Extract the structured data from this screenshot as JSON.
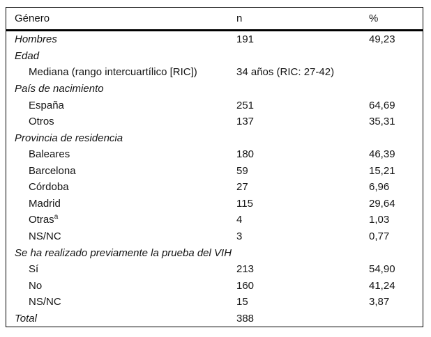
{
  "table": {
    "columns": [
      "Género",
      "n",
      "%"
    ],
    "rows": [
      {
        "label": "Hombres",
        "style": "category",
        "n": "191",
        "pct": "49,23"
      },
      {
        "label": "Edad",
        "style": "category",
        "n": "",
        "pct": ""
      },
      {
        "label": "Mediana (rango intercuartílico [RIC])",
        "style": "sub",
        "n": "34 años (RIC: 27-42)",
        "pct": ""
      },
      {
        "label": "País de nacimiento",
        "style": "category",
        "n": "",
        "pct": ""
      },
      {
        "label": "España",
        "style": "sub",
        "n": "251",
        "pct": "64,69"
      },
      {
        "label": "Otros",
        "style": "sub",
        "n": "137",
        "pct": "35,31"
      },
      {
        "label": "Provincia de residencia",
        "style": "category",
        "n": "",
        "pct": ""
      },
      {
        "label": "Baleares",
        "style": "sub",
        "n": "180",
        "pct": "46,39"
      },
      {
        "label": "Barcelona",
        "style": "sub",
        "n": "59",
        "pct": "15,21"
      },
      {
        "label": "Córdoba",
        "style": "sub",
        "n": "27",
        "pct": "6,96"
      },
      {
        "label": "Madrid",
        "style": "sub",
        "n": "115",
        "pct": "29,64"
      },
      {
        "label": "Otras",
        "sup": "a",
        "style": "sub",
        "n": "4",
        "pct": "1,03"
      },
      {
        "label": "NS/NC",
        "style": "sub",
        "n": "3",
        "pct": "0,77"
      },
      {
        "label": "Se ha realizado previamente la prueba del VIH",
        "style": "category",
        "n": "",
        "pct": ""
      },
      {
        "label": "Sí",
        "style": "sub",
        "n": "213",
        "pct": "54,90"
      },
      {
        "label": "No",
        "style": "sub",
        "n": "160",
        "pct": "41,24"
      },
      {
        "label": "NS/NC",
        "style": "sub",
        "n": "15",
        "pct": "3,87"
      },
      {
        "label": "Total",
        "style": "category",
        "n": "388",
        "pct": ""
      }
    ]
  },
  "colors": {
    "text": "#141414",
    "border": "#000000",
    "background": "#ffffff"
  }
}
